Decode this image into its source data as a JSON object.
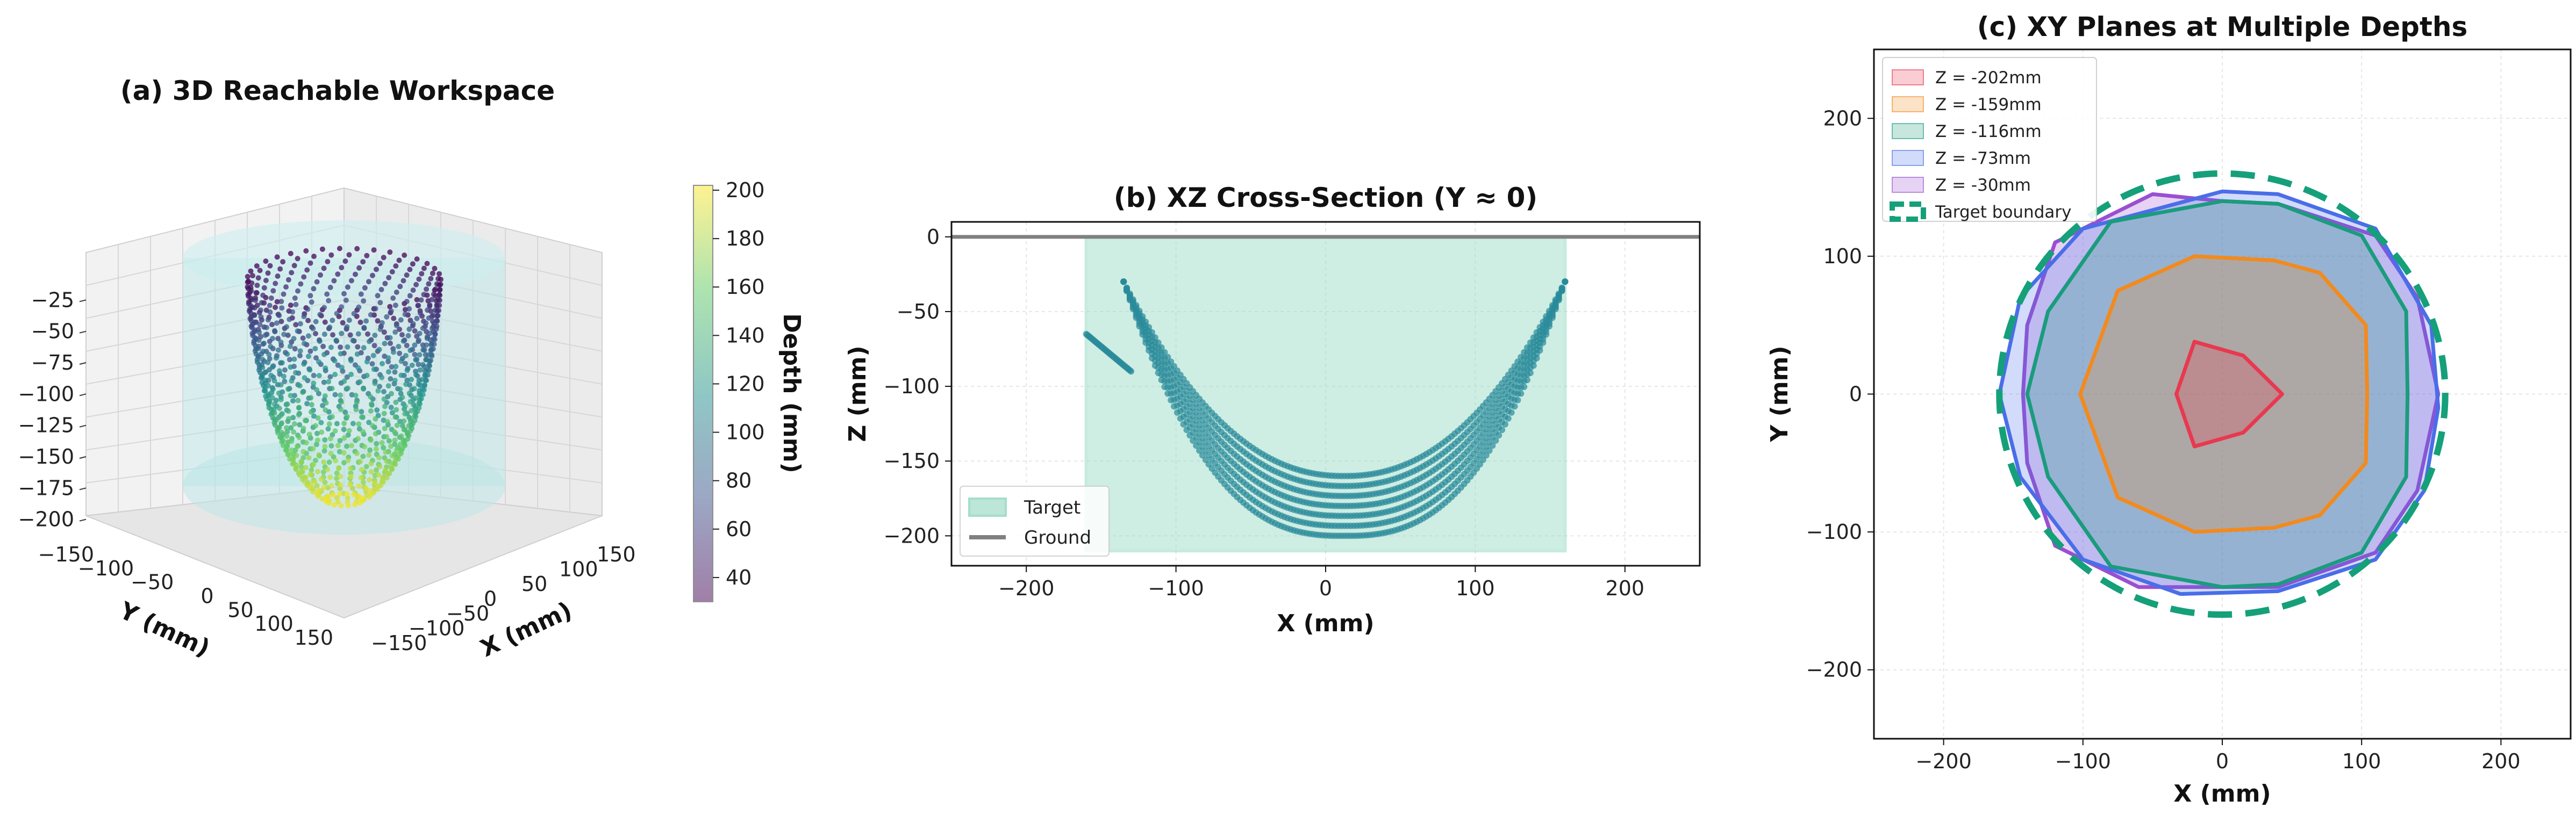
{
  "chart_data": [
    {
      "id": "a",
      "type": "scatter",
      "projection": "3d",
      "title": "(a) 3D Reachable Workspace",
      "xlabel": "X (mm)",
      "ylabel": "Y (mm)",
      "x_ticks": [
        -150,
        -100,
        -50,
        0,
        50,
        100,
        150
      ],
      "y_ticks": [
        -150,
        -100,
        -50,
        0,
        50,
        100,
        150
      ],
      "z_ticks": [
        -25,
        -50,
        -75,
        -100,
        -125,
        -150,
        -175,
        -200
      ],
      "xlim": [
        -160,
        160
      ],
      "ylim": [
        -160,
        160
      ],
      "zlim": [
        -210,
        0
      ],
      "points_note": "points colored by depth (viridis)",
      "target_cylinder": {
        "radius": 160,
        "z_range": [
          -210,
          0
        ],
        "color": "#7fd1d4"
      },
      "colorbar": {
        "label": "Depth (mm)",
        "ticks": [
          40,
          60,
          80,
          100,
          120,
          140,
          160,
          180,
          200
        ],
        "range": [
          30,
          202
        ],
        "colormap": "viridis"
      }
    },
    {
      "id": "b",
      "type": "scatter",
      "title": "(b) XZ Cross-Section (Y ≈ 0)",
      "xlabel": "X (mm)",
      "ylabel": "Z (mm)",
      "xlim": [
        -250,
        250
      ],
      "ylim": [
        -220,
        10
      ],
      "x_ticks": [
        -200,
        -100,
        0,
        100,
        200
      ],
      "y_ticks": [
        0,
        -50,
        -100,
        -150,
        -200
      ],
      "grid": true,
      "legend": {
        "position": "lower-left",
        "entries": [
          "Target",
          "Ground"
        ]
      },
      "target_rect": {
        "x": [
          -160,
          160
        ],
        "z": [
          -210,
          0
        ],
        "color": "#9fdcc8"
      },
      "ground": {
        "z": 0,
        "color": "#808080"
      },
      "point_color": "#2a8a9a",
      "lens_left_tip": [
        -135,
        -30
      ],
      "lens_right_tip": [
        160,
        -30
      ],
      "lens_bottom_z": -200,
      "lens_inner_bottom_z": -160
    },
    {
      "id": "c",
      "type": "area",
      "title": "(c) XY Planes at Multiple Depths",
      "xlabel": "X (mm)",
      "ylabel": "Y (mm)",
      "xlim": [
        -250,
        250
      ],
      "ylim": [
        -250,
        250
      ],
      "x_ticks": [
        -200,
        -100,
        0,
        100,
        200
      ],
      "y_ticks": [
        200,
        100,
        0,
        -100,
        -200
      ],
      "grid": true,
      "legend": {
        "position": "top-left"
      },
      "series": [
        {
          "name": "Z = -202mm",
          "color": "#e8394f",
          "polygon": [
            [
              -20,
              38
            ],
            [
              15,
              28
            ],
            [
              43,
              0
            ],
            [
              15,
              -28
            ],
            [
              -20,
              -38
            ],
            [
              -33,
              0
            ]
          ]
        },
        {
          "name": "Z = -159mm",
          "color": "#f28a1e",
          "polygon": [
            [
              -20,
              100
            ],
            [
              37,
              97
            ],
            [
              70,
              88
            ],
            [
              103,
              50
            ],
            [
              104,
              0
            ],
            [
              103,
              -50
            ],
            [
              70,
              -88
            ],
            [
              37,
              -97
            ],
            [
              -20,
              -100
            ],
            [
              -75,
              -75
            ],
            [
              -102,
              0
            ],
            [
              -75,
              75
            ]
          ]
        },
        {
          "name": "Z = -116mm",
          "color": "#1a9c7d",
          "polygon": [
            [
              -80,
              125
            ],
            [
              0,
              140
            ],
            [
              40,
              138
            ],
            [
              100,
              115
            ],
            [
              132,
              60
            ],
            [
              133,
              0
            ],
            [
              132,
              -60
            ],
            [
              100,
              -115
            ],
            [
              40,
              -138
            ],
            [
              0,
              -140
            ],
            [
              -80,
              -125
            ],
            [
              -125,
              -60
            ],
            [
              -140,
              0
            ],
            [
              -125,
              60
            ]
          ]
        },
        {
          "name": "Z = -73mm",
          "color": "#4a6ee8",
          "polygon": [
            [
              -100,
              120
            ],
            [
              0,
              147
            ],
            [
              40,
              145
            ],
            [
              110,
              120
            ],
            [
              150,
              50
            ],
            [
              155,
              -10
            ],
            [
              145,
              -70
            ],
            [
              110,
              -120
            ],
            [
              40,
              -143
            ],
            [
              -30,
              -145
            ],
            [
              -100,
              -120
            ],
            [
              -145,
              -60
            ],
            [
              -160,
              0
            ],
            [
              -145,
              70
            ]
          ]
        },
        {
          "name": "Z = -30mm",
          "color": "#9a4fd0",
          "polygon": [
            [
              -120,
              110
            ],
            [
              -50,
              145
            ],
            [
              0,
              140
            ],
            [
              40,
              138
            ],
            [
              110,
              115
            ],
            [
              140,
              70
            ],
            [
              155,
              0
            ],
            [
              140,
              -70
            ],
            [
              110,
              -115
            ],
            [
              40,
              -140
            ],
            [
              0,
              -140
            ],
            [
              -60,
              -140
            ],
            [
              -120,
              -110
            ],
            [
              -140,
              -50
            ],
            [
              -143,
              0
            ],
            [
              -140,
              50
            ]
          ]
        }
      ],
      "target_boundary": {
        "name": "Target boundary",
        "radius": 160,
        "color": "#15a07a"
      }
    }
  ]
}
